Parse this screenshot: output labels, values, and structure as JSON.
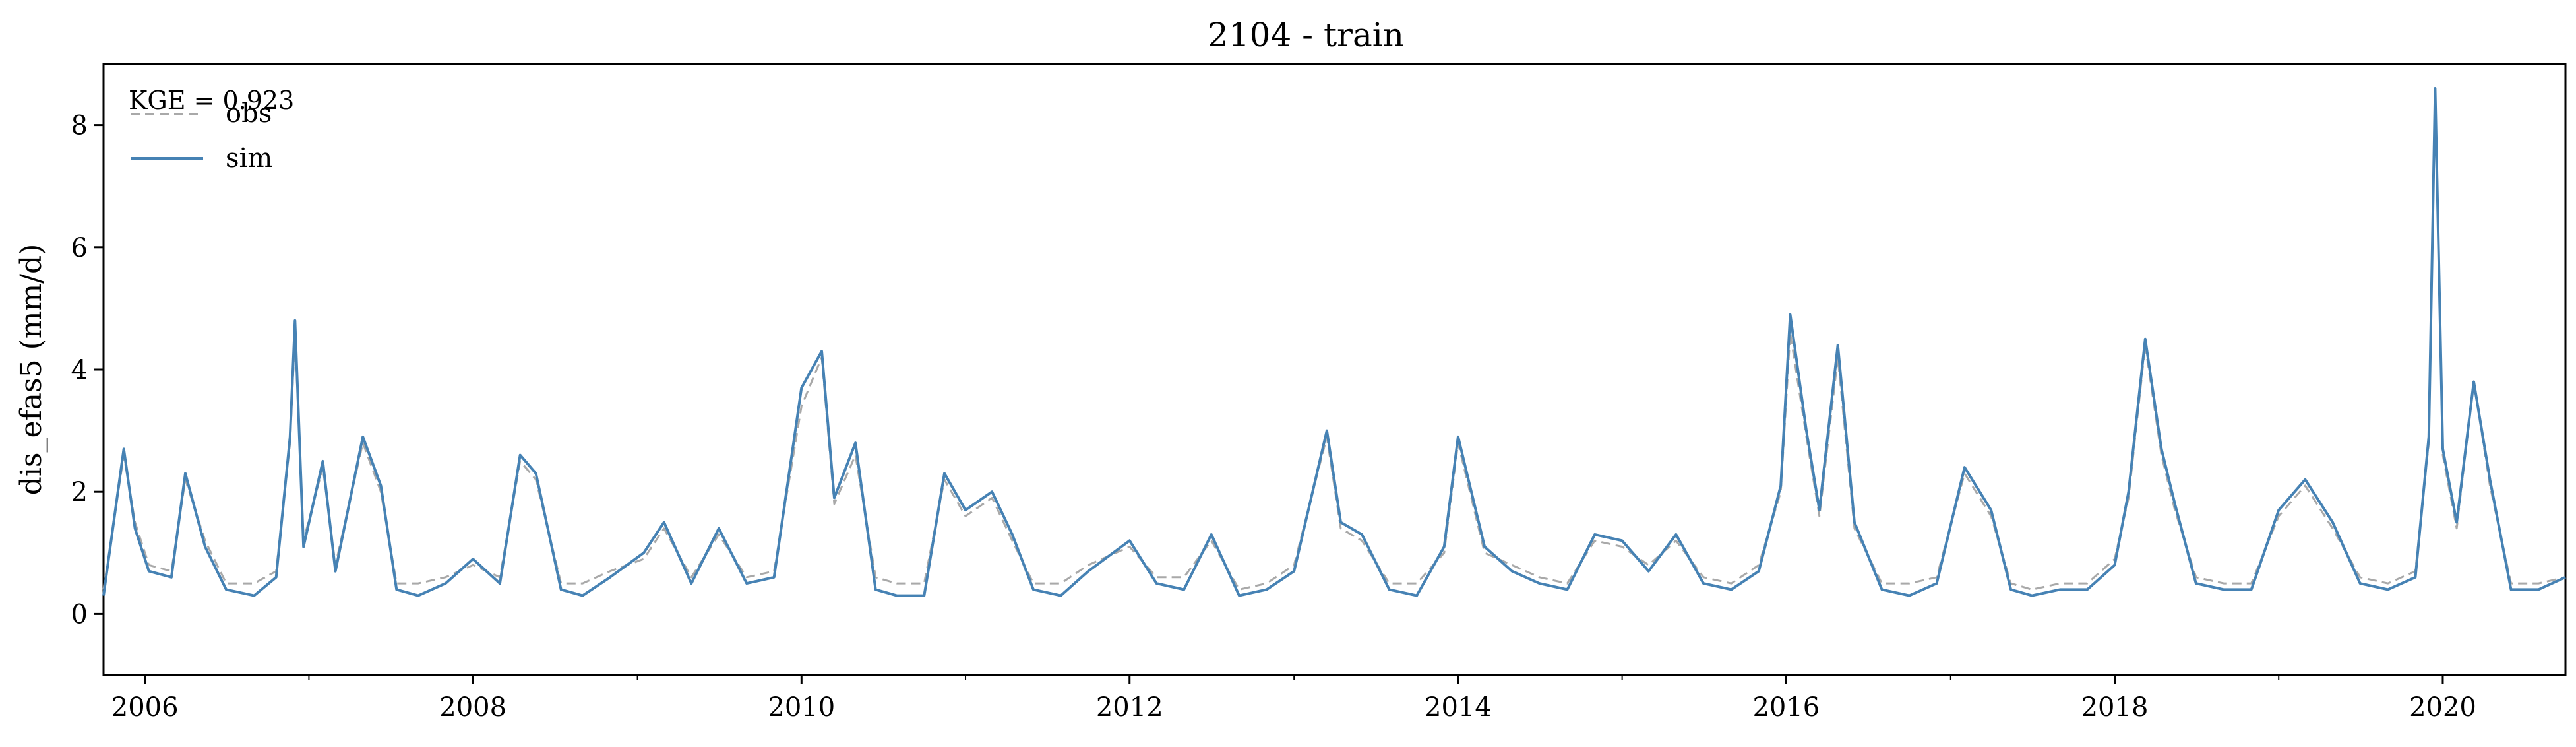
{
  "chart_data": {
    "type": "line",
    "title": "2104 - train",
    "xlabel": "",
    "ylabel": "dis_efas5 (mm/d)",
    "xlim": [
      "2005-10-01",
      "2020-09-30"
    ],
    "ylim": [
      -1,
      9
    ],
    "yticks": [
      0,
      2,
      4,
      6,
      8
    ],
    "xticks": [
      "2006-01-01",
      "2008-01-01",
      "2010-01-01",
      "2012-01-01",
      "2014-01-01",
      "2016-01-01",
      "2018-01-01",
      "2020-01-01"
    ],
    "xtick_labels": [
      "2006",
      "2008",
      "2010",
      "2012",
      "2014",
      "2016",
      "2018",
      "2020"
    ],
    "grid": false,
    "legend_position": "upper-left",
    "annotation": "KGE = 0.923",
    "series": [
      {
        "name": "obs",
        "color": "#a9a9a9",
        "style": "dashed",
        "x": [
          "2005-10-01",
          "2005-11-15",
          "2005-12-10",
          "2006-01-10",
          "2006-03-01",
          "2006-04-01",
          "2006-05-15",
          "2006-07-01",
          "2006-09-01",
          "2006-10-20",
          "2006-11-20",
          "2006-12-01",
          "2006-12-20",
          "2007-02-01",
          "2007-03-01",
          "2007-05-01",
          "2007-06-10",
          "2007-07-15",
          "2007-09-01",
          "2007-11-01",
          "2008-01-01",
          "2008-03-01",
          "2008-04-15",
          "2008-05-20",
          "2008-07-15",
          "2008-09-01",
          "2008-11-01",
          "2009-01-15",
          "2009-03-01",
          "2009-05-01",
          "2009-07-01",
          "2009-09-01",
          "2009-11-01",
          "2010-01-01",
          "2010-02-15",
          "2010-03-15",
          "2010-05-01",
          "2010-06-15",
          "2010-08-01",
          "2010-10-01",
          "2010-11-15",
          "2011-01-01",
          "2011-03-01",
          "2011-04-15",
          "2011-06-01",
          "2011-08-01",
          "2011-10-01",
          "2012-01-01",
          "2012-03-01",
          "2012-05-01",
          "2012-07-01",
          "2012-09-01",
          "2012-11-01",
          "2013-01-01",
          "2013-03-15",
          "2013-04-15",
          "2013-06-01",
          "2013-08-01",
          "2013-10-01",
          "2013-12-01",
          "2014-01-01",
          "2014-03-01",
          "2014-05-01",
          "2014-07-01",
          "2014-09-01",
          "2014-11-01",
          "2015-01-01",
          "2015-03-01",
          "2015-05-01",
          "2015-07-01",
          "2015-09-01",
          "2015-11-01",
          "2015-12-20",
          "2016-01-10",
          "2016-02-15",
          "2016-03-15",
          "2016-04-25",
          "2016-06-01",
          "2016-08-01",
          "2016-10-01",
          "2016-12-01",
          "2017-02-01",
          "2017-04-01",
          "2017-05-15",
          "2017-07-01",
          "2017-09-01",
          "2017-11-01",
          "2018-01-01",
          "2018-02-01",
          "2018-03-10",
          "2018-04-15",
          "2018-05-15",
          "2018-07-01",
          "2018-09-01",
          "2018-11-01",
          "2019-01-01",
          "2019-03-01",
          "2019-05-01",
          "2019-07-01",
          "2019-09-01",
          "2019-11-01",
          "2019-12-01",
          "2019-12-15",
          "2020-01-01",
          "2020-02-01",
          "2020-03-10",
          "2020-04-15",
          "2020-06-01",
          "2020-08-01",
          "2020-09-30"
        ],
        "values": [
          0.4,
          2.6,
          1.5,
          0.8,
          0.7,
          2.2,
          1.2,
          0.5,
          0.5,
          0.7,
          2.8,
          4.6,
          1.2,
          2.4,
          0.8,
          2.8,
          2.0,
          0.5,
          0.5,
          0.6,
          0.8,
          0.6,
          2.5,
          2.2,
          0.5,
          0.5,
          0.7,
          0.9,
          1.4,
          0.6,
          1.3,
          0.6,
          0.7,
          3.4,
          4.2,
          1.8,
          2.6,
          0.6,
          0.5,
          0.5,
          2.2,
          1.6,
          1.9,
          1.2,
          0.5,
          0.5,
          0.8,
          1.1,
          0.6,
          0.6,
          1.2,
          0.4,
          0.5,
          0.8,
          2.9,
          1.4,
          1.2,
          0.5,
          0.5,
          1.0,
          2.8,
          1.0,
          0.8,
          0.6,
          0.5,
          1.2,
          1.1,
          0.8,
          1.2,
          0.6,
          0.5,
          0.8,
          2.0,
          4.6,
          2.9,
          1.6,
          4.2,
          1.4,
          0.5,
          0.5,
          0.6,
          2.3,
          1.6,
          0.5,
          0.4,
          0.5,
          0.5,
          0.9,
          1.9,
          4.4,
          2.6,
          1.7,
          0.6,
          0.5,
          0.5,
          1.6,
          2.1,
          1.4,
          0.6,
          0.5,
          0.7,
          2.8,
          8.6,
          2.6,
          1.4,
          3.8,
          2.1,
          0.5,
          0.5,
          0.6
        ]
      },
      {
        "name": "sim",
        "color": "#4682b4",
        "style": "solid",
        "x": [
          "2005-10-01",
          "2005-11-15",
          "2005-12-10",
          "2006-01-10",
          "2006-03-01",
          "2006-04-01",
          "2006-05-15",
          "2006-07-01",
          "2006-09-01",
          "2006-10-20",
          "2006-11-20",
          "2006-12-01",
          "2006-12-20",
          "2007-02-01",
          "2007-03-01",
          "2007-05-01",
          "2007-06-10",
          "2007-07-15",
          "2007-09-01",
          "2007-11-01",
          "2008-01-01",
          "2008-03-01",
          "2008-04-15",
          "2008-05-20",
          "2008-07-15",
          "2008-09-01",
          "2008-11-01",
          "2009-01-15",
          "2009-03-01",
          "2009-05-01",
          "2009-07-01",
          "2009-09-01",
          "2009-11-01",
          "2010-01-01",
          "2010-02-15",
          "2010-03-15",
          "2010-05-01",
          "2010-06-15",
          "2010-08-01",
          "2010-10-01",
          "2010-11-15",
          "2011-01-01",
          "2011-03-01",
          "2011-04-15",
          "2011-06-01",
          "2011-08-01",
          "2011-10-01",
          "2012-01-01",
          "2012-03-01",
          "2012-05-01",
          "2012-07-01",
          "2012-09-01",
          "2012-11-01",
          "2013-01-01",
          "2013-03-15",
          "2013-04-15",
          "2013-06-01",
          "2013-08-01",
          "2013-10-01",
          "2013-12-01",
          "2014-01-01",
          "2014-03-01",
          "2014-05-01",
          "2014-07-01",
          "2014-09-01",
          "2014-11-01",
          "2015-01-01",
          "2015-03-01",
          "2015-05-01",
          "2015-07-01",
          "2015-09-01",
          "2015-11-01",
          "2015-12-20",
          "2016-01-10",
          "2016-02-15",
          "2016-03-15",
          "2016-04-25",
          "2016-06-01",
          "2016-08-01",
          "2016-10-01",
          "2016-12-01",
          "2017-02-01",
          "2017-04-01",
          "2017-05-15",
          "2017-07-01",
          "2017-09-01",
          "2017-11-01",
          "2018-01-01",
          "2018-02-01",
          "2018-03-10",
          "2018-04-15",
          "2018-05-15",
          "2018-07-01",
          "2018-09-01",
          "2018-11-01",
          "2019-01-01",
          "2019-03-01",
          "2019-05-01",
          "2019-07-01",
          "2019-09-01",
          "2019-11-01",
          "2019-12-01",
          "2019-12-15",
          "2020-01-01",
          "2020-02-01",
          "2020-03-10",
          "2020-04-15",
          "2020-06-01",
          "2020-08-01",
          "2020-09-30"
        ],
        "values": [
          0.3,
          2.7,
          1.4,
          0.7,
          0.6,
          2.3,
          1.1,
          0.4,
          0.3,
          0.6,
          2.9,
          4.8,
          1.1,
          2.5,
          0.7,
          2.9,
          2.1,
          0.4,
          0.3,
          0.5,
          0.9,
          0.5,
          2.6,
          2.3,
          0.4,
          0.3,
          0.6,
          1.0,
          1.5,
          0.5,
          1.4,
          0.5,
          0.6,
          3.7,
          4.3,
          1.9,
          2.8,
          0.4,
          0.3,
          0.3,
          2.3,
          1.7,
          2.0,
          1.3,
          0.4,
          0.3,
          0.7,
          1.2,
          0.5,
          0.4,
          1.3,
          0.3,
          0.4,
          0.7,
          3.0,
          1.5,
          1.3,
          0.4,
          0.3,
          1.1,
          2.9,
          1.1,
          0.7,
          0.5,
          0.4,
          1.3,
          1.2,
          0.7,
          1.3,
          0.5,
          0.4,
          0.7,
          2.1,
          4.9,
          3.0,
          1.7,
          4.4,
          1.5,
          0.4,
          0.3,
          0.5,
          2.4,
          1.7,
          0.4,
          0.3,
          0.4,
          0.4,
          0.8,
          2.0,
          4.5,
          2.7,
          1.8,
          0.5,
          0.4,
          0.4,
          1.7,
          2.2,
          1.5,
          0.5,
          0.4,
          0.6,
          2.9,
          8.6,
          2.7,
          1.5,
          3.8,
          2.2,
          0.4,
          0.4,
          0.6
        ]
      }
    ]
  }
}
